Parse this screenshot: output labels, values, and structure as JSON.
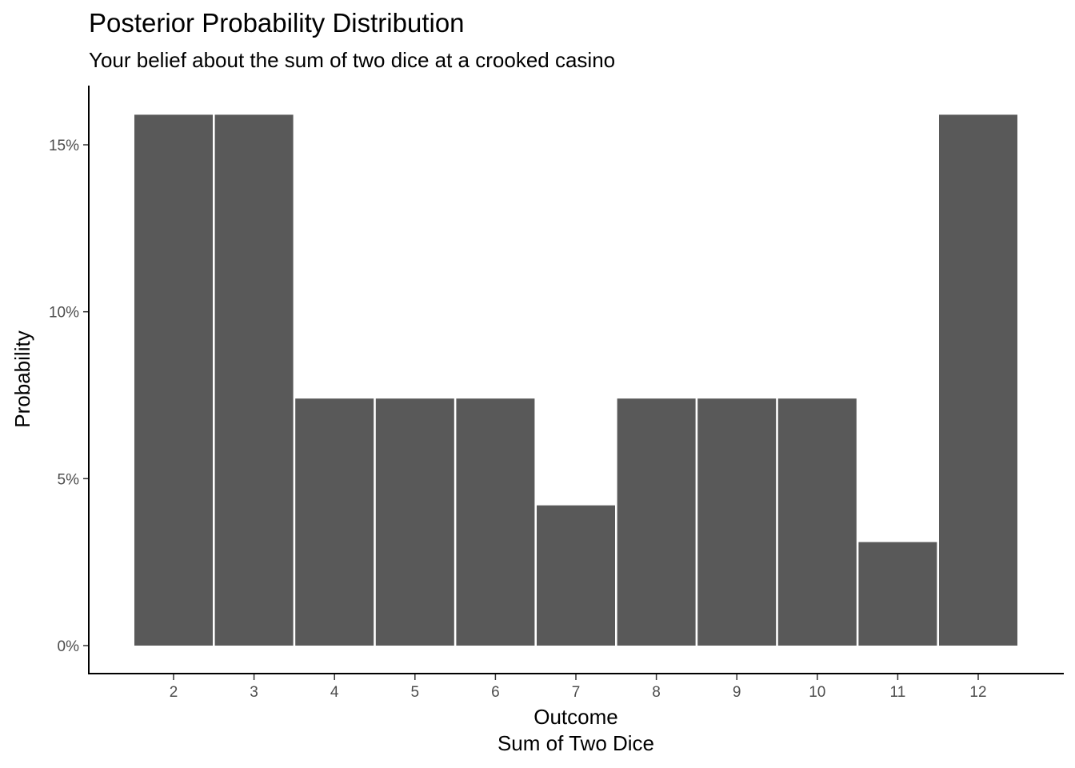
{
  "chart_data": {
    "type": "bar",
    "title": "Posterior Probability Distribution",
    "subtitle": "Your belief about the sum of two dice at a crooked casino",
    "xlabel": "Outcome",
    "xlabel_sub": "Sum of Two Dice",
    "ylabel": "Probability",
    "categories": [
      "2",
      "3",
      "4",
      "5",
      "6",
      "7",
      "8",
      "9",
      "10",
      "11",
      "12"
    ],
    "values": [
      0.159,
      0.159,
      0.074,
      0.074,
      0.074,
      0.042,
      0.074,
      0.074,
      0.074,
      0.031,
      0.159
    ],
    "ylim": [
      0,
      0.16
    ],
    "y_ticks": [
      0,
      0.05,
      0.1,
      0.15
    ],
    "y_tick_labels": [
      "0%",
      "5%",
      "10%",
      "15%"
    ],
    "bar_color": "#595959",
    "grid": false,
    "legend": "none"
  }
}
